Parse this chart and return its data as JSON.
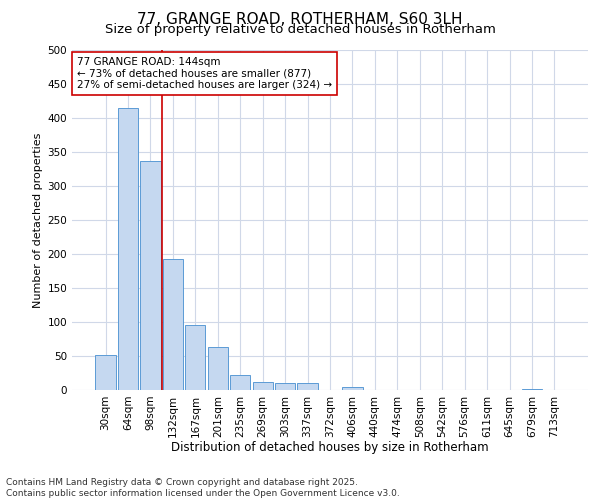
{
  "title": "77, GRANGE ROAD, ROTHERHAM, S60 3LH",
  "subtitle": "Size of property relative to detached houses in Rotherham",
  "xlabel": "Distribution of detached houses by size in Rotherham",
  "ylabel": "Number of detached properties",
  "categories": [
    "30sqm",
    "64sqm",
    "98sqm",
    "132sqm",
    "167sqm",
    "201sqm",
    "235sqm",
    "269sqm",
    "303sqm",
    "337sqm",
    "372sqm",
    "406sqm",
    "440sqm",
    "474sqm",
    "508sqm",
    "542sqm",
    "576sqm",
    "611sqm",
    "645sqm",
    "679sqm",
    "713sqm"
  ],
  "values": [
    52,
    414,
    337,
    193,
    96,
    63,
    22,
    12,
    10,
    10,
    0,
    5,
    0,
    0,
    0,
    0,
    0,
    0,
    0,
    2,
    0
  ],
  "bar_color": "#c5d8f0",
  "bar_edge_color": "#5b9bd5",
  "vline_x": 2.5,
  "vline_color": "#cc0000",
  "annotation_text": "77 GRANGE ROAD: 144sqm\n← 73% of detached houses are smaller (877)\n27% of semi-detached houses are larger (324) →",
  "annotation_box_color": "#ffffff",
  "annotation_box_edge": "#cc0000",
  "footer": "Contains HM Land Registry data © Crown copyright and database right 2025.\nContains public sector information licensed under the Open Government Licence v3.0.",
  "bg_color": "#ffffff",
  "plot_bg_color": "#ffffff",
  "grid_color": "#d0d8e8",
  "ylim": [
    0,
    500
  ],
  "yticks": [
    0,
    50,
    100,
    150,
    200,
    250,
    300,
    350,
    400,
    450,
    500
  ],
  "title_fontsize": 11,
  "subtitle_fontsize": 9.5,
  "xlabel_fontsize": 8.5,
  "ylabel_fontsize": 8,
  "tick_fontsize": 7.5,
  "annotation_fontsize": 7.5,
  "footer_fontsize": 6.5
}
